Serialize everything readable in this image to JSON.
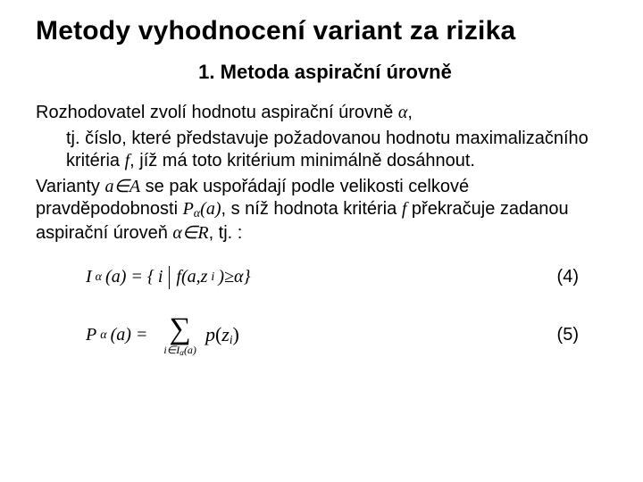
{
  "title": "Metody vyhodnocení variant za rizika",
  "subtitle": "1. Metoda aspirační úrovně",
  "para1_line1": "Rozhodovatel zvolí hodnotu aspirační úrovně ",
  "alpha": "α",
  "para1_line1_end": ",",
  "para1_line2": "tj. číslo, které představuje požadovanou hodnotu maximalizačního kritéria ",
  "f": "f",
  "para1_line2_end": ", jíž má toto kritérium minimálně dosáhnout.",
  "para2_a": "Varianty ",
  "aInA": "a∈A",
  "para2_b": " se pak uspořádají podle velikosti celkové pravděpodobnosti ",
  "Palpha_a": "P",
  "Palpha_a_arg": "(a)",
  "para2_c": ", s níž hodnota kritéria ",
  "para2_d": " překračuje zadanou aspirační úroveň ",
  "alphaInR": "α∈R",
  "para2_e": ", tj. :",
  "eq4_lhs_I": "I",
  "eq4_lhs_arg": "(a) = {",
  "eq4_i": "i ",
  "eq4_rhs_a": " f(a,z",
  "eq4_rhs_b": ")≥α}",
  "eq4_num": "(4)",
  "eq5_lhs_P": "P",
  "eq5_lhs_arg": "(a) =",
  "eq5_upper": "",
  "eq5_lower_a": "i∈I",
  "eq5_lower_b": "(a)",
  "eq5_pz_a": "p",
  "eq5_pz_b": "z",
  "eq5_num": "(5)",
  "colors": {
    "text": "#000000",
    "bg": "#ffffff"
  }
}
